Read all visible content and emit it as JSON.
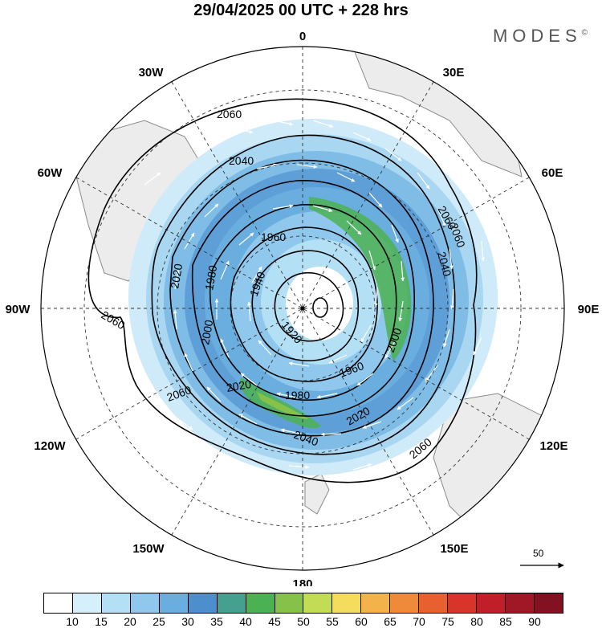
{
  "title": "29/04/2025  00 UTC  + 228 hrs",
  "brand": "MODES",
  "brand_mark": "©",
  "longitude_labels": {
    "n": "0",
    "e30": "30E",
    "e60": "60E",
    "e90": "90E",
    "e120": "120E",
    "e150": "150E",
    "s": "180",
    "w150": "150W",
    "w120": "120W",
    "w90": "90W",
    "w60": "60W",
    "w30": "30W"
  },
  "contour_labels": [
    "2060",
    "2040",
    "2060",
    "2060",
    "2040",
    "2060",
    "2020",
    "1960",
    "1980",
    "1940",
    "1920",
    "1960",
    "2000",
    "1980",
    "2020",
    "2020",
    "2000",
    "2040",
    "2060",
    "2060"
  ],
  "colorbar": {
    "ticks": [
      "10",
      "15",
      "20",
      "25",
      "30",
      "35",
      "40",
      "45",
      "50",
      "55",
      "60",
      "65",
      "70",
      "75",
      "80",
      "85",
      "90"
    ],
    "colors": [
      "#ffffff",
      "#d6f0fb",
      "#b4e0f5",
      "#8fc8ec",
      "#6aaedf",
      "#4b8fcc",
      "#46a08f",
      "#4cb152",
      "#86c24a",
      "#c3dc55",
      "#f6dc5c",
      "#f4b24b",
      "#ef8a3b",
      "#e8602f",
      "#d9342a",
      "#c01f2a",
      "#a01726",
      "#821121"
    ],
    "units_hint": ""
  },
  "reference_vector": {
    "value": "50"
  },
  "colors": {
    "land": "#ececec",
    "coast": "#8a8a8a",
    "contour": "#000000",
    "grid": "#333333"
  }
}
